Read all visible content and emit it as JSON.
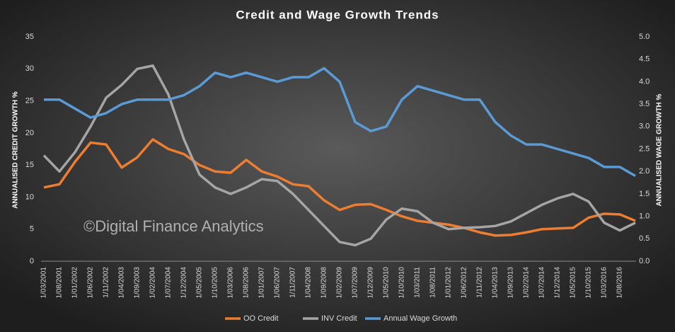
{
  "chart_data": {
    "type": "line",
    "title": "Credit and Wage Growth Trends",
    "annotation": "©Digital Finance Analytics",
    "y_label": "ANNUALISED CREDIT GROWTH %",
    "y2_label": "ANNUALISED WAGE GROWTH %",
    "categories": [
      "1/03/2001",
      "1/08/2001",
      "1/01/2002",
      "1/06/2002",
      "1/11/2002",
      "1/04/2003",
      "1/09/2003",
      "1/02/2004",
      "1/07/2004",
      "1/12/2004",
      "1/05/2005",
      "1/10/2005",
      "1/03/2006",
      "1/08/2006",
      "1/01/2007",
      "1/06/2007",
      "1/11/2007",
      "1/04/2008",
      "1/09/2008",
      "1/02/2009",
      "1/07/2009",
      "1/12/2009",
      "1/05/2010",
      "1/10/2010",
      "1/03/2011",
      "1/08/2011",
      "1/01/2012",
      "1/06/2012",
      "1/11/2012",
      "1/04/2013",
      "1/09/2013",
      "1/02/2014",
      "1/07/2014",
      "1/12/2014",
      "1/05/2015",
      "1/10/2015",
      "1/03/2016",
      "1/08/2016",
      null
    ],
    "series": [
      {
        "name": "OO Credit",
        "color": "#ed7d31",
        "values": [
          11.5,
          12,
          15.5,
          18.5,
          18.2,
          14.6,
          16.2,
          19,
          17.5,
          16.7,
          15,
          14,
          13.8,
          15.8,
          14,
          13.2,
          12,
          11.7,
          9.5,
          8,
          8.8,
          8.9,
          8,
          7,
          6.3,
          6,
          5.7,
          5.2,
          4.5,
          4,
          4.1,
          4.5,
          5,
          5.1,
          5.2,
          6.8,
          7.4,
          7.3,
          6.3
        ]
      },
      {
        "name": "INV Credit",
        "color": "#a5a5a5",
        "values": [
          16.5,
          14,
          17,
          21,
          25.5,
          27.5,
          30,
          30.5,
          26,
          19,
          13.5,
          11.5,
          10.5,
          11.5,
          12.8,
          12.5,
          10.5,
          8,
          5.5,
          3,
          2.5,
          3.5,
          6.5,
          8.2,
          7.8,
          6,
          5,
          5.2,
          5.3,
          5.5,
          6.2,
          7.5,
          8.8,
          9.8,
          10.5,
          9.3,
          6,
          4.8,
          6
        ]
      },
      {
        "name": "Annual Wage Growth",
        "color": "#5b9bd5",
        "axis": "y2",
        "values": [
          3.6,
          3.6,
          3.4,
          3.2,
          3.3,
          3.5,
          3.6,
          3.6,
          3.6,
          3.7,
          3.9,
          4.2,
          4.1,
          4.2,
          4.1,
          4.0,
          4.1,
          4.1,
          4.3,
          4.0,
          3.1,
          2.9,
          3.0,
          3.6,
          3.9,
          3.8,
          3.7,
          3.6,
          3.6,
          3.1,
          2.8,
          2.6,
          2.6,
          2.5,
          2.4,
          2.3,
          2.1,
          2.1,
          1.9
        ]
      }
    ],
    "ylim": [
      0,
      35
    ],
    "yticks": [
      0,
      5,
      10,
      15,
      20,
      25,
      30,
      35
    ],
    "y2lim": [
      0,
      5
    ],
    "y2ticks": [
      {
        "value": 0,
        "label": "0.0"
      },
      {
        "value": 0.5,
        "label": "0.5"
      },
      {
        "value": 1,
        "label": "1.0"
      },
      {
        "value": 1.5,
        "label": "1.5"
      },
      {
        "value": 2,
        "label": "2.0"
      },
      {
        "value": 2.5,
        "label": "2.5"
      },
      {
        "value": 3,
        "label": "3.0"
      },
      {
        "value": 3.5,
        "label": "3.5"
      },
      {
        "value": 4,
        "label": "4.0"
      },
      {
        "value": 4.5,
        "label": "4.5"
      },
      {
        "value": 5,
        "label": "5.0"
      }
    ],
    "grid": false,
    "legend": "bottom"
  }
}
